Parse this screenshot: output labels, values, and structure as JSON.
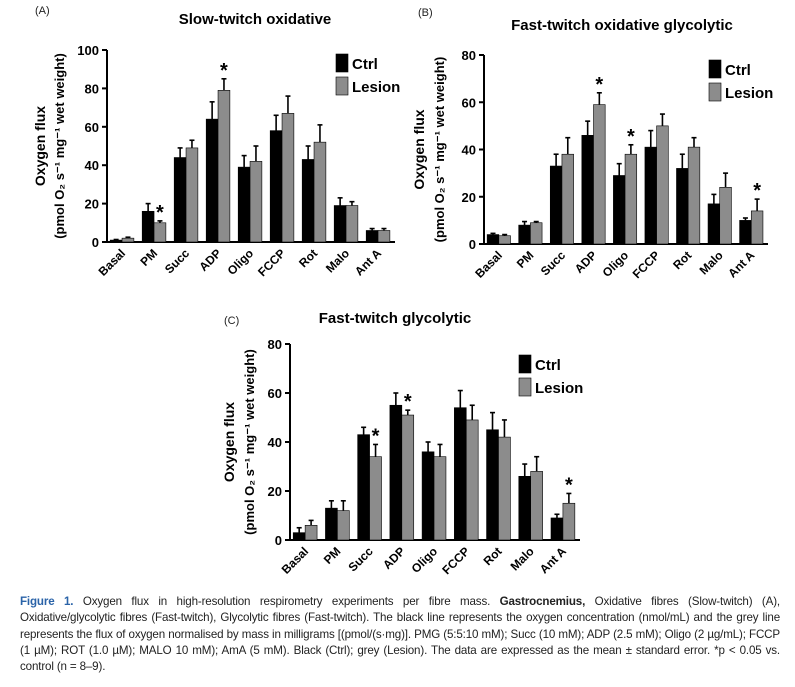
{
  "chart_data": [
    {
      "type": "bar",
      "panel_label": "(A)",
      "title": "Slow-twitch oxidative",
      "ylabel": [
        "Oxygen flux",
        "(pmol O₂ s⁻¹ mg⁻¹ wet weight)"
      ],
      "ylim": [
        0,
        100
      ],
      "yticks": [
        0,
        20,
        40,
        60,
        80,
        100
      ],
      "categories": [
        "Basal",
        "PM",
        "Succ",
        "ADP",
        "Oligo",
        "FCCP",
        "Rot",
        "Malo",
        "Ant A"
      ],
      "legend_placement": "top-right",
      "series": [
        {
          "name": "Ctrl",
          "color": "#000000",
          "values": [
            1,
            16,
            44,
            64,
            39,
            58,
            43,
            19,
            6
          ],
          "error": [
            0.3,
            4,
            5,
            9,
            6,
            8,
            7,
            4,
            1
          ],
          "significant": []
        },
        {
          "name": "Lesion",
          "color": "#8c8c8c",
          "values": [
            2,
            10,
            49,
            79,
            42,
            67,
            52,
            19,
            6
          ],
          "error": [
            0.5,
            1,
            4,
            6,
            8,
            9,
            9,
            2,
            1
          ],
          "significant": [
            "PM",
            "ADP"
          ]
        }
      ]
    },
    {
      "type": "bar",
      "panel_label": "(B)",
      "title": "Fast-twitch oxidative glycolytic",
      "ylabel": [
        "Oxygen flux",
        "(pmol O₂ s⁻¹ mg⁻¹ wet weight)"
      ],
      "ylim": [
        0,
        80
      ],
      "yticks": [
        0,
        20,
        40,
        60,
        80
      ],
      "categories": [
        "Basal",
        "PM",
        "Succ",
        "ADP",
        "Oligo",
        "FCCP",
        "Rot",
        "Malo",
        "Ant A"
      ],
      "legend_placement": "top-right",
      "series": [
        {
          "name": "Ctrl",
          "color": "#000000",
          "values": [
            4,
            8,
            33,
            46,
            29,
            41,
            32,
            17,
            10
          ],
          "error": [
            0.5,
            1.5,
            5,
            6,
            5,
            7,
            6,
            4,
            1
          ],
          "significant": []
        },
        {
          "name": "Lesion",
          "color": "#8c8c8c",
          "values": [
            3.5,
            9,
            38,
            59,
            38,
            50,
            41,
            24,
            14
          ],
          "error": [
            0.5,
            0.5,
            7,
            5,
            4,
            5,
            4,
            6,
            5
          ],
          "significant": [
            "ADP",
            "Oligo",
            "Ant A"
          ]
        }
      ]
    },
    {
      "type": "bar",
      "panel_label": "(C)",
      "title": "Fast-twitch glycolytic",
      "ylabel": [
        "Oxygen flux",
        "(pmol O₂ s⁻¹ mg⁻¹ wet weight)"
      ],
      "ylim": [
        0,
        80
      ],
      "yticks": [
        0,
        20,
        40,
        60,
        80
      ],
      "categories": [
        "Basal",
        "PM",
        "Succ",
        "ADP",
        "Oligo",
        "FCCP",
        "Rot",
        "Malo",
        "Ant A"
      ],
      "legend_placement": "top-right",
      "series": [
        {
          "name": "Ctrl",
          "color": "#000000",
          "values": [
            3,
            13,
            43,
            55,
            36,
            54,
            45,
            26,
            9
          ],
          "error": [
            2,
            3,
            3,
            5,
            4,
            7,
            7,
            5,
            1.5
          ],
          "significant": []
        },
        {
          "name": "Lesion",
          "color": "#8c8c8c",
          "values": [
            6,
            12,
            34,
            51,
            34,
            49,
            42,
            28,
            15
          ],
          "error": [
            2,
            4,
            5,
            2,
            5,
            6,
            7,
            6,
            4
          ],
          "significant": [
            "Succ",
            "ADP",
            "Ant A"
          ]
        }
      ]
    }
  ],
  "significance_marker": "*",
  "caption": {
    "figure_label": "Figure 1.",
    "text_1": " Oxygen flux in high-resolution respirometry experiments per fibre mass. ",
    "bold_term": "Gastrocnemius,",
    "text_2": " Oxidative fibres (Slow-twitch) (A), Oxidative/glycolytic fibres (Fast-twitch), Glycolytic fibres (Fast-twitch). The black line represents the oxygen concentration (nmol/mL) and the grey line represents the flux of oxygen normalised by mass in milligrams [(pmol/(s·mg)]. PMG (5:5:10 mM); Succ (10 mM); ADP (2.5 mM); Oligo (2 µg/mL); FCCP (1 µM); ROT (1.0 µM); MALO 10 mM); AmA (5 mM). Black (Ctrl); grey (Lesion). The data are expressed as the mean ± standard error. *p < 0.05 vs. control (n = 8–9)."
  }
}
